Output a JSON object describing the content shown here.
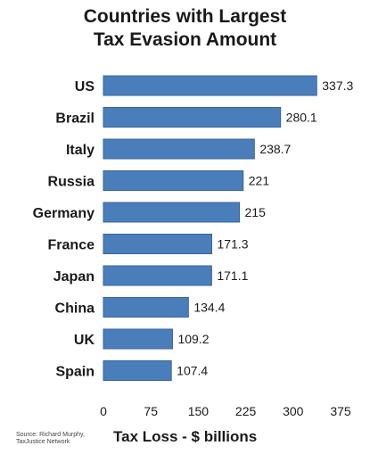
{
  "chart_data": {
    "type": "bar",
    "orientation": "horizontal",
    "title_lines": [
      "Countries with Largest",
      "Tax Evasion Amount"
    ],
    "categories": [
      "US",
      "Brazil",
      "Italy",
      "Russia",
      "Germany",
      "France",
      "Japan",
      "China",
      "UK",
      "Spain"
    ],
    "values": [
      337.3,
      280.1,
      238.7,
      221,
      215,
      171.3,
      171.1,
      134.4,
      109.2,
      107.4
    ],
    "value_labels": [
      "337.3",
      "280.1",
      "238.7",
      "221",
      "215",
      "171.3",
      "171.1",
      "134.4",
      "109.2",
      "107.4"
    ],
    "xlabel": "Tax Loss - $ billions",
    "xlim": [
      0,
      375
    ],
    "xticks": [
      0,
      75,
      150,
      225,
      300,
      375
    ],
    "grid": false,
    "bar_color": "#4a7ebb",
    "bar_edge_color": "#38659c"
  },
  "source_lines": [
    "Source: Richard Murphy,",
    "TaxJustice Network"
  ]
}
